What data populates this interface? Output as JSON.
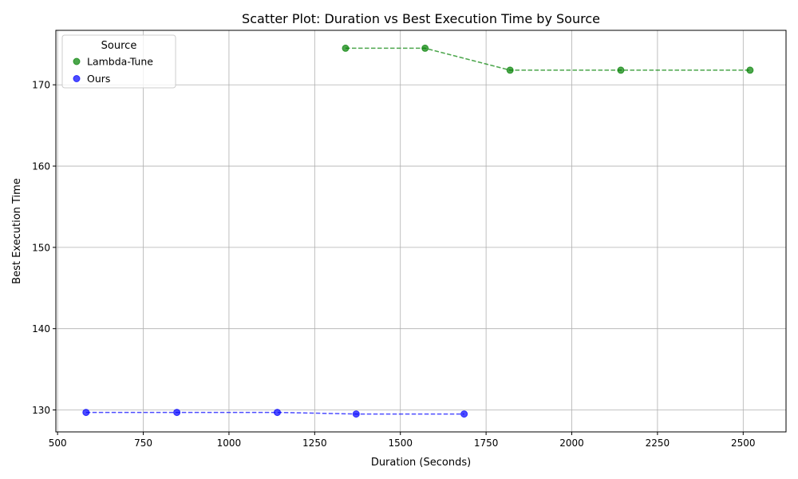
{
  "chart_data": {
    "type": "scatter",
    "title": "Scatter Plot: Duration vs Best Execution Time by Source",
    "xlabel": "Duration (Seconds)",
    "ylabel": "Best Execution Time",
    "xlim": [
      495,
      2625
    ],
    "ylim": [
      127.3,
      176.7
    ],
    "xticks": [
      500,
      750,
      1000,
      1250,
      1500,
      1750,
      2000,
      2250,
      2500
    ],
    "yticks": [
      130,
      140,
      150,
      160,
      170
    ],
    "grid": true,
    "legend": {
      "title": "Source",
      "position": "top-left"
    },
    "series": [
      {
        "name": "Lambda-Tune",
        "color": "#008000",
        "points": [
          {
            "x": 1340,
            "y": 174.5
          },
          {
            "x": 1572,
            "y": 174.5
          },
          {
            "x": 1820,
            "y": 171.8
          },
          {
            "x": 2143,
            "y": 171.8
          },
          {
            "x": 2520,
            "y": 171.8
          }
        ]
      },
      {
        "name": "Ours",
        "color": "#0000ff",
        "points": [
          {
            "x": 583,
            "y": 129.7
          },
          {
            "x": 848,
            "y": 129.7
          },
          {
            "x": 1141,
            "y": 129.7
          },
          {
            "x": 1371,
            "y": 129.5
          },
          {
            "x": 1686,
            "y": 129.5
          }
        ]
      }
    ]
  }
}
